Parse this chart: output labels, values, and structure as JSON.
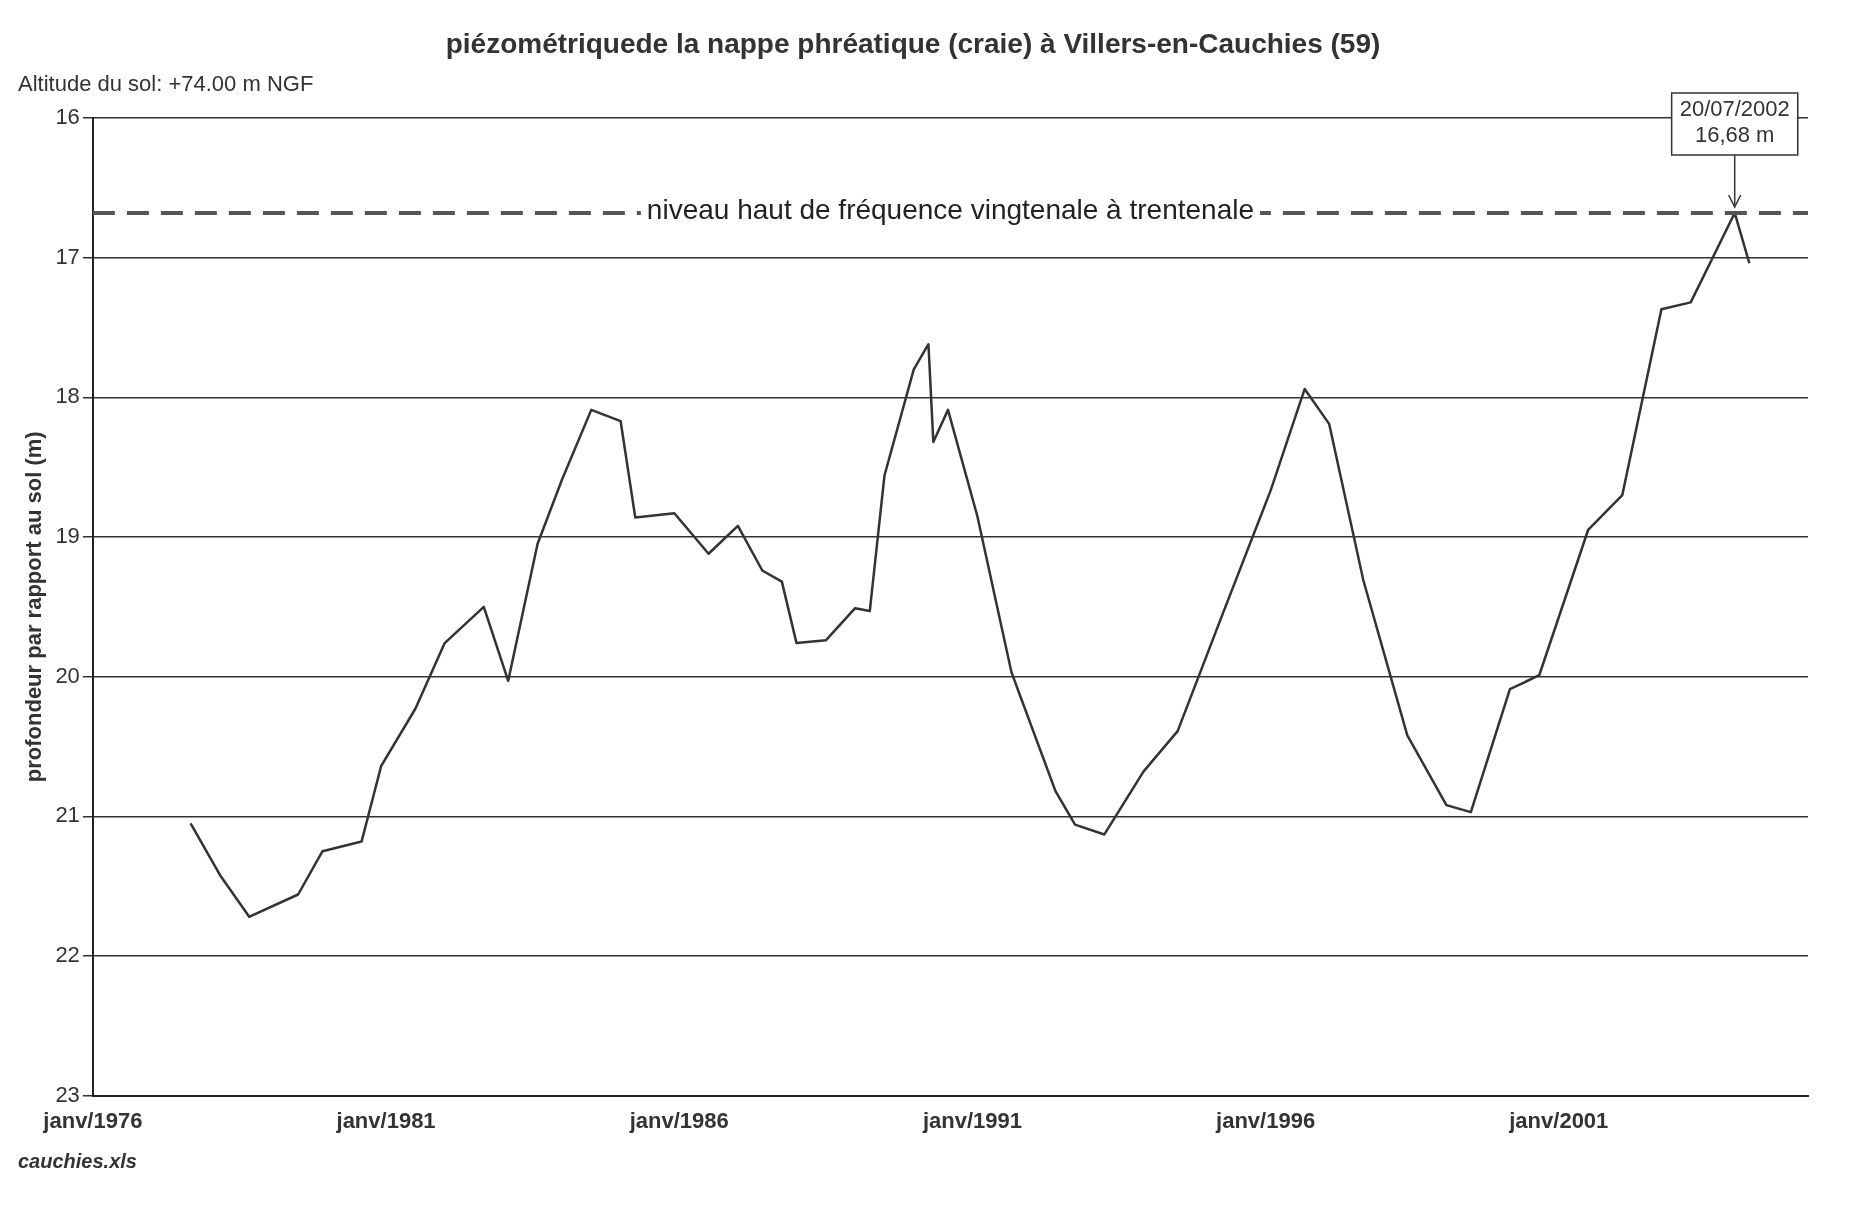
{
  "chart_data": {
    "type": "line",
    "title": "piézométriquede la nappe phréatique (craie) à Villers-en-Cauchies (59)",
    "subtitle": "Altitude du sol: +74.00 m NGF",
    "ylabel": "profondeur par rapport au sol (m)",
    "x": [
      "1977-09",
      "1978-03",
      "1978-09",
      "1979-07",
      "1979-12",
      "1980-08",
      "1980-12",
      "1981-07",
      "1982-01",
      "1982-09",
      "1983-02",
      "1983-08",
      "1984-01",
      "1984-07",
      "1985-01",
      "1985-04",
      "1985-12",
      "1986-07",
      "1987-01",
      "1987-06",
      "1987-10",
      "1988-01",
      "1988-07",
      "1989-01",
      "1989-04",
      "1989-07",
      "1990-01",
      "1990-04",
      "1990-05",
      "1990-08",
      "1991-02",
      "1991-09",
      "1992-06",
      "1992-10",
      "1993-04",
      "1993-12",
      "1994-07",
      "1995-04",
      "1996-02",
      "1996-09",
      "1997-02",
      "1997-09",
      "1998-06",
      "1999-02",
      "1999-07",
      "2000-03",
      "2000-09",
      "2001-07",
      "2002-02",
      "2002-10",
      "2003-04",
      "2004-01",
      "2004-04"
    ],
    "series": [
      {
        "color": "#333333",
        "values": [
          21.05,
          21.42,
          21.72,
          21.56,
          21.25,
          21.18,
          20.64,
          20.23,
          19.76,
          19.5,
          20.03,
          19.05,
          18.59,
          18.09,
          18.17,
          18.86,
          18.83,
          19.12,
          18.92,
          19.24,
          19.32,
          19.76,
          19.74,
          19.51,
          19.53,
          18.56,
          17.8,
          17.62,
          18.32,
          18.09,
          18.85,
          19.97,
          20.82,
          21.06,
          21.13,
          20.68,
          20.39,
          19.57,
          18.67,
          17.94,
          18.19,
          19.31,
          20.42,
          20.92,
          20.97,
          20.09,
          19.99,
          18.95,
          18.7,
          17.37,
          17.32,
          16.68,
          17.04
        ]
      }
    ],
    "xlim": [
      "1976-01",
      "2005-04"
    ],
    "xticks": [
      {
        "value": "1976-01",
        "label": "janv/1976"
      },
      {
        "value": "1981-01",
        "label": "janv/1981"
      },
      {
        "value": "1986-01",
        "label": "janv/1986"
      },
      {
        "value": "1991-01",
        "label": "janv/1991"
      },
      {
        "value": "1996-01",
        "label": "janv/1996"
      },
      {
        "value": "2001-01",
        "label": "janv/2001"
      }
    ],
    "ylim": [
      23,
      16
    ],
    "yticks": [
      16,
      17,
      18,
      19,
      20,
      21,
      22,
      23
    ],
    "grid": "y",
    "legend": false,
    "marker": "none",
    "line_style": "solid",
    "ref_lines": [
      {
        "axis": "y",
        "value": 16.68,
        "label": "niveau haut de fréquence vingtenale à trentenale",
        "color": "#555555",
        "line_style": "dashed"
      }
    ],
    "annotations": [
      {
        "text": "20/07/2002\n16,68 m",
        "x": "2004-01",
        "y": 16.68
      },
      "cauchies.xls"
    ]
  }
}
